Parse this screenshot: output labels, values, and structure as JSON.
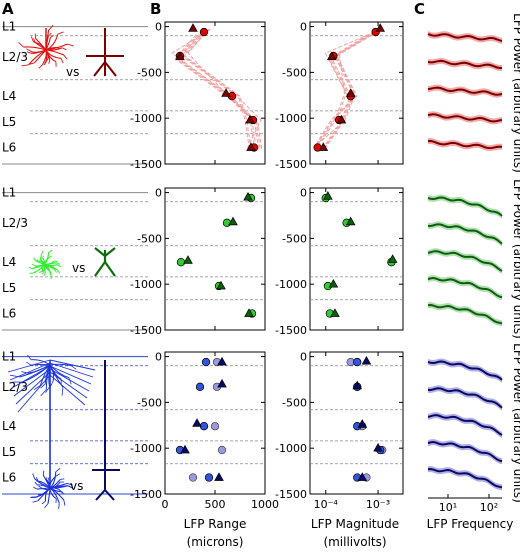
{
  "panel_letters": {
    "a": "A",
    "b": "B",
    "c": "C"
  },
  "vs_label": "vs",
  "layers": [
    "L1",
    "L2/3",
    "L4",
    "L5",
    "L6"
  ],
  "rows": [
    {
      "name": "upper",
      "color": "#b30000",
      "light": "#e00000",
      "dark": "#7a0000",
      "pale": "#f2a0a0"
    },
    {
      "name": "middle",
      "color": "#1a8c1a",
      "light": "#33cc33",
      "dark": "#0b5e0b",
      "pale": "#a9dca9"
    },
    {
      "name": "lower",
      "color": "#1a1aa6",
      "light": "#3355dd",
      "dark": "#0a0a66",
      "pale": "#a9a9e6"
    }
  ],
  "chart_data": [
    {
      "type": "scatter",
      "panel": "B-range",
      "xlabel": "LFP Range\n(microns)",
      "ylabel": "",
      "xlim": [
        0,
        1000
      ],
      "ylim": [
        -1500,
        50
      ],
      "xticks": [
        "0",
        "500",
        "1000"
      ],
      "yticks": [
        "0",
        "-500",
        "-1000",
        "-1500"
      ],
      "rows": [
        {
          "circles": [
            [
              390,
              -60
            ],
            [
              150,
              -320
            ],
            [
              670,
              -760
            ],
            [
              880,
              -1020
            ],
            [
              890,
              -1320
            ]
          ],
          "triangles": [
            [
              280,
              -20
            ],
            [
              150,
              -330
            ],
            [
              610,
              -730
            ],
            [
              850,
              -1020
            ],
            [
              860,
              -1320
            ]
          ]
        },
        {
          "circles": [
            [
              860,
              -60
            ],
            [
              620,
              -330
            ],
            [
              160,
              -760
            ],
            [
              540,
              -1020
            ],
            [
              870,
              -1320
            ]
          ],
          "triangles": [
            [
              830,
              -50
            ],
            [
              680,
              -320
            ],
            [
              230,
              -740
            ],
            [
              560,
              -1020
            ],
            [
              840,
              -1320
            ]
          ]
        },
        {
          "circles": [
            [
              410,
              -60
            ],
            [
              350,
              -330
            ],
            [
              390,
              -760
            ],
            [
              150,
              -1020
            ],
            [
              440,
              -1320
            ]
          ],
          "triangles": [
            [
              570,
              -60
            ],
            [
              570,
              -300
            ],
            [
              320,
              -730
            ],
            [
              200,
              -1020
            ],
            [
              540,
              -1320
            ]
          ],
          "circles_pale": [
            [
              520,
              -60
            ],
            [
              520,
              -330
            ],
            [
              500,
              -760
            ],
            [
              570,
              -1020
            ],
            [
              280,
              -1320
            ]
          ]
        }
      ]
    },
    {
      "type": "scatter",
      "panel": "B-magnitude",
      "xlabel": "LFP Magnitude\n(millivolts)",
      "ylabel": "",
      "xscale": "log",
      "xlim": [
        5e-05,
        0.003
      ],
      "ylim": [
        -1500,
        50
      ],
      "xticks": [
        "10⁻⁴",
        "10⁻³"
      ],
      "rows": [
        {
          "circles": [
            [
              0.0009,
              -60
            ],
            [
              0.00014,
              -320
            ],
            [
              0.0003,
              -760
            ],
            [
              0.00018,
              -1020
            ],
            [
              7e-05,
              -1320
            ]
          ],
          "triangles": [
            [
              0.0011,
              -20
            ],
            [
              0.00013,
              -330
            ],
            [
              0.0003,
              -730
            ],
            [
              0.0002,
              -1020
            ],
            [
              9e-05,
              -1320
            ]
          ]
        },
        {
          "circles": [
            [
              0.0001,
              -60
            ],
            [
              0.00025,
              -330
            ],
            [
              0.0018,
              -760
            ],
            [
              0.00011,
              -1020
            ],
            [
              0.00012,
              -1320
            ]
          ],
          "triangles": [
            [
              0.00011,
              -40
            ],
            [
              0.0003,
              -320
            ],
            [
              0.0019,
              -730
            ],
            [
              0.00014,
              -1000
            ],
            [
              0.00015,
              -1320
            ]
          ]
        },
        {
          "circles": [
            [
              0.0004,
              -60
            ],
            [
              0.0004,
              -330
            ],
            [
              0.0004,
              -760
            ],
            [
              0.0011,
              -1020
            ],
            [
              0.0004,
              -1320
            ]
          ],
          "triangles": [
            [
              0.0006,
              -50
            ],
            [
              0.0004,
              -320
            ],
            [
              0.0005,
              -740
            ],
            [
              0.001,
              -1000
            ],
            [
              0.0005,
              -1320
            ]
          ],
          "circles_pale": [
            [
              0.0003,
              -60
            ],
            [
              0.0004,
              -330
            ],
            [
              0.0005,
              -760
            ],
            [
              0.0012,
              -1020
            ],
            [
              0.0006,
              -1320
            ]
          ]
        }
      ]
    }
  ],
  "panel_c": {
    "xlabel": "LFP Frequency",
    "ylabel": "LFP Power (arbitrary units)",
    "xticks": [
      "10¹",
      "10²"
    ],
    "curves_per_row": 5
  }
}
